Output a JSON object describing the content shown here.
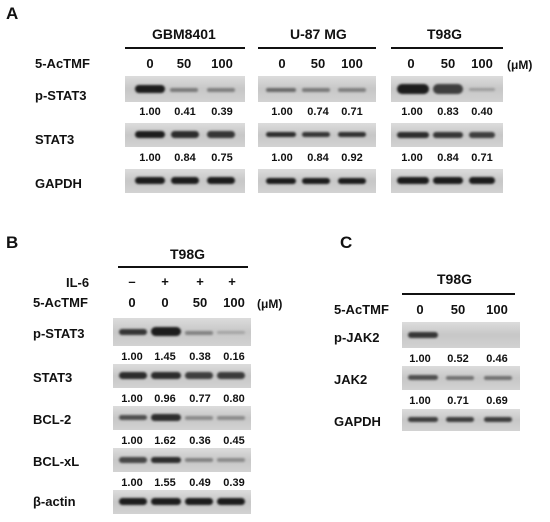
{
  "panels": {
    "A": {
      "letter": "A",
      "treatment_label": "5-AcTMF",
      "unit": "(μM)",
      "doses": [
        "0",
        "50",
        "100"
      ],
      "cell_lines": [
        "GBM8401",
        "U-87 MG",
        "T98G"
      ],
      "rows": [
        "p-STAT3",
        "STAT3",
        "GAPDH"
      ],
      "quant": {
        "pSTAT3": [
          [
            "1.00",
            "0.41",
            "0.39"
          ],
          [
            "1.00",
            "0.74",
            "0.71"
          ],
          [
            "1.00",
            "0.83",
            "0.40"
          ]
        ],
        "STAT3": [
          [
            "1.00",
            "0.84",
            "0.75"
          ],
          [
            "1.00",
            "0.84",
            "0.92"
          ],
          [
            "1.00",
            "0.84",
            "0.71"
          ]
        ]
      }
    },
    "B": {
      "letter": "B",
      "cell_line": "T98G",
      "il6_label": "IL-6",
      "il6": [
        "–",
        "+",
        "+",
        "+"
      ],
      "treatment_label": "5-AcTMF",
      "doses": [
        "0",
        "0",
        "50",
        "100"
      ],
      "unit": "(μM)",
      "rows": [
        "p-STAT3",
        "STAT3",
        "BCL-2",
        "BCL-xL",
        "β-actin"
      ],
      "quant": {
        "pSTAT3": [
          "1.00",
          "1.45",
          "0.38",
          "0.16"
        ],
        "STAT3": [
          "1.00",
          "0.96",
          "0.77",
          "0.80"
        ],
        "BCL2": [
          "1.00",
          "1.62",
          "0.36",
          "0.45"
        ],
        "BCLxL": [
          "1.00",
          "1.55",
          "0.49",
          "0.39"
        ]
      }
    },
    "C": {
      "letter": "C",
      "cell_line": "T98G",
      "treatment_label": "5-AcTMF",
      "doses": [
        "0",
        "50",
        "100"
      ],
      "rows": [
        "p-JAK2",
        "JAK2",
        "GAPDH"
      ],
      "quant": {
        "pJAK2": [
          "1.00",
          "0.52",
          "0.46"
        ],
        "JAK2": [
          "1.00",
          "0.71",
          "0.69"
        ]
      }
    }
  }
}
